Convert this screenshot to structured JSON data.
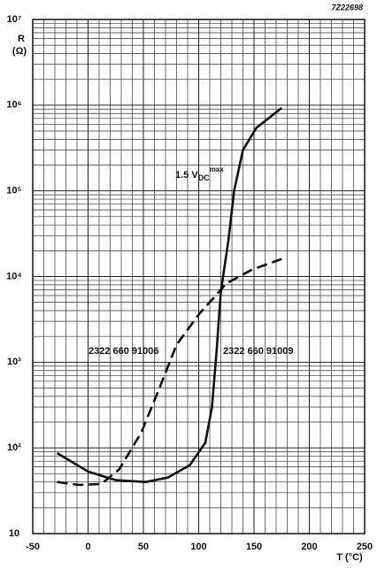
{
  "chart_data": {
    "type": "line",
    "figure_code": "7Z22698",
    "ylabel_lines": [
      "R",
      "(Ω)"
    ],
    "xlabel": "T (°C)",
    "xlim": [
      -50,
      250
    ],
    "xticks": [
      -50,
      0,
      50,
      100,
      150,
      200,
      250
    ],
    "ylim": [
      10,
      10000000
    ],
    "yticks": [
      10,
      {
        "value": 100,
        "label": "10²"
      },
      {
        "value": 1000,
        "label": "10³"
      },
      {
        "value": 10000,
        "label": "10⁴"
      },
      {
        "value": 100000,
        "label": "10⁵"
      },
      {
        "value": 1000000,
        "label": "10⁶"
      },
      {
        "value": 10000000,
        "label": "10⁷"
      }
    ],
    "log_y": true,
    "grid": true,
    "annotation": {
      "text": "1.5 V",
      "sub": "DC",
      "sup": "max"
    },
    "series": [
      {
        "name": "2322 660 91006",
        "color": "#111111",
        "dashed": true,
        "x": [
          -28,
          -8,
          12,
          28,
          48,
          64,
          80,
          100,
          125,
          148,
          175
        ],
        "values": [
          40,
          37,
          38,
          56,
          150,
          480,
          1600,
          3600,
          8300,
          12000,
          16000
        ]
      },
      {
        "name": "2322 660 91009",
        "color": "#111111",
        "dashed": false,
        "x": [
          -28,
          0,
          25,
          52,
          72,
          92,
          106,
          112,
          116,
          120,
          127,
          132,
          140,
          152,
          175
        ],
        "values": [
          87,
          53,
          42,
          40,
          45,
          63,
          115,
          300,
          1260,
          6600,
          27500,
          100000,
          300000,
          540000,
          930000
        ]
      }
    ]
  }
}
